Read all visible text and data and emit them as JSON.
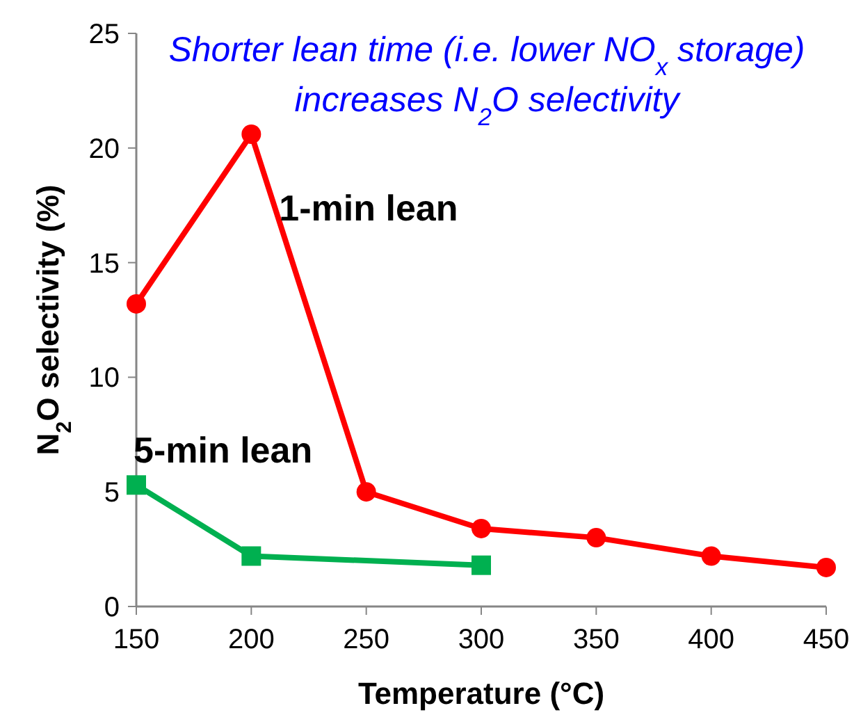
{
  "chart_data": {
    "type": "line",
    "title": "Shorter lean time (i.e. lower NO$_{x}$ storage) increases N$_{2}$O selectivity",
    "xlabel": "Temperature (°C)",
    "ylabel": "N$_{2}$O selectivity (%)",
    "xlim": [
      150,
      450
    ],
    "xticks": [
      150,
      200,
      250,
      300,
      350,
      400,
      450
    ],
    "ylim": [
      0,
      25
    ],
    "yticks": [
      0,
      5,
      10,
      15,
      20,
      25
    ],
    "grid": false,
    "series": [
      {
        "name": "1-min lean",
        "color": "#ff0000",
        "marker": "circle",
        "x": [
          150,
          200,
          250,
          300,
          350,
          400,
          450
        ],
        "values": [
          13.2,
          20.6,
          5.0,
          3.4,
          3.0,
          2.2,
          1.7
        ]
      },
      {
        "name": "5-min lean",
        "color": "#00b050",
        "marker": "square",
        "x": [
          150,
          200,
          300
        ],
        "values": [
          5.3,
          2.2,
          1.8
        ]
      }
    ]
  }
}
